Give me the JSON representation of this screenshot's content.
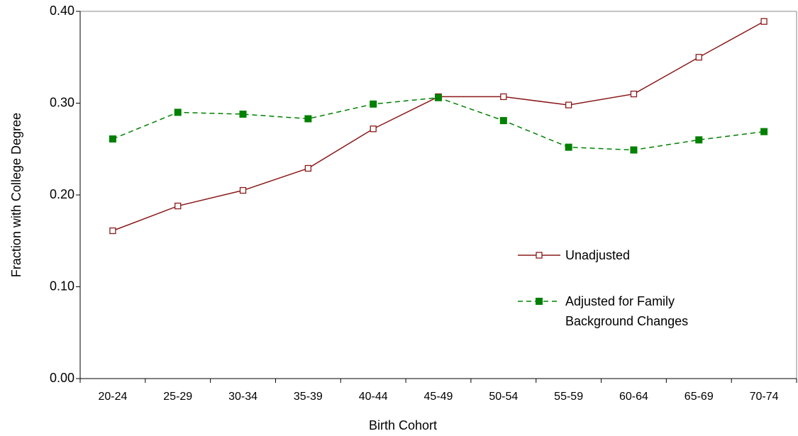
{
  "chart_data": {
    "type": "line",
    "x_label": "Birth Cohort",
    "y_label": "Fraction with College Degree",
    "categories": [
      "20-24",
      "25-29",
      "30-34",
      "35-39",
      "40-44",
      "45-49",
      "50-54",
      "55-59",
      "60-64",
      "65-69",
      "70-74"
    ],
    "series": [
      {
        "name": "Unadjusted",
        "color": "#8b1a1a",
        "line_style": "solid",
        "marker": "square-open",
        "values": [
          0.161,
          0.188,
          0.205,
          0.229,
          0.272,
          0.307,
          0.307,
          0.298,
          0.31,
          0.35,
          0.389
        ]
      },
      {
        "name": "Adjusted for Family Background Changes",
        "color": "#008000",
        "line_style": "dashed",
        "marker": "square-filled",
        "values": [
          0.261,
          0.29,
          0.288,
          0.283,
          0.299,
          0.306,
          0.281,
          0.252,
          0.249,
          0.26,
          0.269
        ]
      }
    ],
    "ylim": [
      0,
      0.4
    ],
    "yticks": [
      {
        "value": 0,
        "label": "0.00"
      },
      {
        "value": 0.1,
        "label": "0.10"
      },
      {
        "value": 0.2,
        "label": "0.20"
      },
      {
        "value": 0.3,
        "label": "0.30"
      },
      {
        "value": 0.4,
        "label": "0.40"
      }
    ],
    "grid": false,
    "legend_position": "center-right"
  }
}
